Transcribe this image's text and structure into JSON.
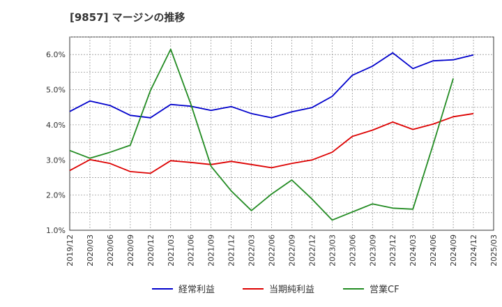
{
  "chart_data": {
    "type": "line",
    "title": "[9857]  マージンの推移",
    "xlabel": "",
    "ylabel": "",
    "y_tick_labels": [
      "1.0%",
      "2.0%",
      "3.0%",
      "4.0%",
      "5.0%",
      "6.0%"
    ],
    "ylim": [
      1.0,
      6.5
    ],
    "grid": true,
    "legend_placement": "bottom",
    "categories": [
      "2019/12",
      "2020/03",
      "2020/06",
      "2020/09",
      "2020/12",
      "2021/03",
      "2021/06",
      "2021/09",
      "2021/12",
      "2022/03",
      "2022/06",
      "2022/09",
      "2022/12",
      "2023/03",
      "2023/06",
      "2023/09",
      "2023/12",
      "2024/03",
      "2024/06",
      "2024/09",
      "2024/12",
      "2025/03"
    ],
    "series": [
      {
        "name": "経常利益",
        "color": "#0000cc",
        "values": [
          4.38,
          4.68,
          4.55,
          4.27,
          4.2,
          4.58,
          4.53,
          4.41,
          4.52,
          4.32,
          4.2,
          4.37,
          4.49,
          4.81,
          5.41,
          5.67,
          6.05,
          5.6,
          5.82,
          5.85,
          5.99,
          null
        ]
      },
      {
        "name": "当期純利益",
        "color": "#dd0000",
        "values": [
          2.7,
          3.01,
          2.9,
          2.67,
          2.62,
          2.98,
          2.93,
          2.87,
          2.96,
          2.87,
          2.78,
          2.9,
          3.0,
          3.22,
          3.67,
          3.85,
          4.08,
          3.87,
          4.02,
          4.23,
          4.32,
          null
        ]
      },
      {
        "name": "営業CF",
        "color": "#228b22",
        "values": [
          3.27,
          3.05,
          3.22,
          3.42,
          4.98,
          6.15,
          4.59,
          2.82,
          2.12,
          1.56,
          2.03,
          2.43,
          1.89,
          1.29,
          1.52,
          1.75,
          1.63,
          1.6,
          3.43,
          5.32,
          null,
          null
        ]
      }
    ]
  }
}
